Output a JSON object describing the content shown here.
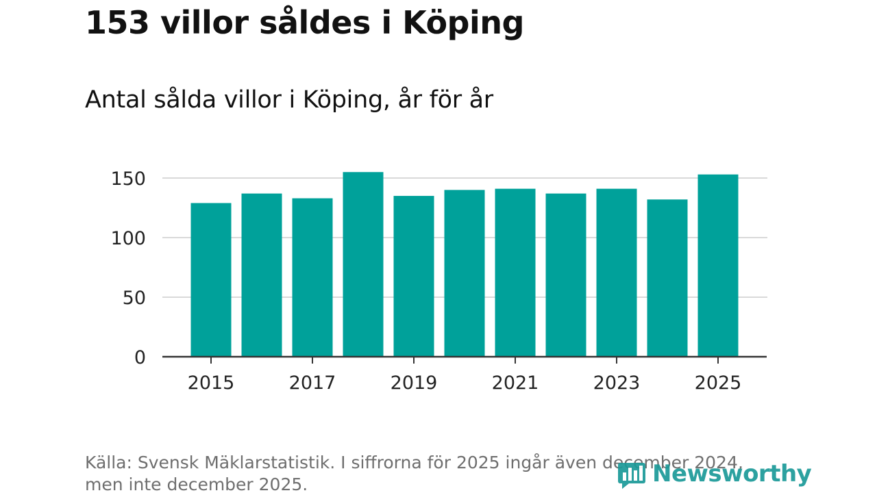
{
  "colors": {
    "bar": "#00A19A",
    "grid": "#d9d9d9",
    "axis": "#333333",
    "text": "#111111",
    "source": "#6e6e6e",
    "logo": "#1b9a98"
  },
  "brand": {
    "name": "Newsworthy",
    "icon": "bar-chart-logo-icon"
  },
  "chart_data": {
    "type": "bar",
    "title": "153 villor såldes i Köping",
    "subtitle": "Antal sålda villor i Köping, år för år",
    "xlabel": "",
    "ylabel": "",
    "categories": [
      "2015",
      "2016",
      "2017",
      "2018",
      "2019",
      "2020",
      "2021",
      "2022",
      "2023",
      "2024",
      "2025"
    ],
    "values": [
      129,
      137,
      133,
      155,
      135,
      140,
      141,
      137,
      141,
      132,
      153
    ],
    "x_tick_labels": [
      "2015",
      "2017",
      "2019",
      "2021",
      "2023",
      "2025"
    ],
    "y_ticks": [
      0,
      50,
      100,
      150
    ],
    "y_tick_labels": [
      "0",
      "50",
      "100",
      "150"
    ],
    "ylim": [
      0,
      160
    ],
    "grid": true,
    "legend": "none",
    "source": "Källa: Svensk Mäklarstatistik. I siffrorna för 2025 ingår även december 2024, men inte december 2025."
  }
}
